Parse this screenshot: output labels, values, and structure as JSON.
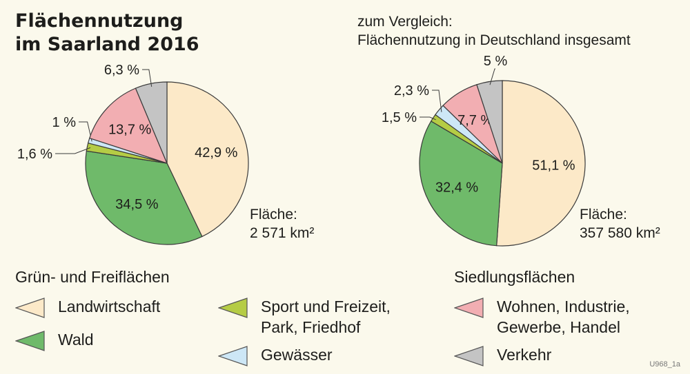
{
  "title_line1": "Flächennutzung",
  "title_line2": "im Saarland 2016",
  "compare_line1": "zum Vergleich:",
  "compare_line2": "Flächennutzung in Deutschland insgesamt",
  "colors": {
    "landwirtschaft": "#fce9c8",
    "wald": "#6fba6a",
    "sport": "#b5cc45",
    "gewaesser": "#cde7f6",
    "wohnen": "#f2aeb2",
    "verkehr": "#c4c4c4"
  },
  "chart_data": [
    {
      "type": "pie",
      "title": "Flächennutzung im Saarland 2016",
      "area_label": "Fläche:",
      "area_value": "2 571 km²",
      "slices": [
        {
          "category": "Landwirtschaft",
          "value": 42.9,
          "label": "42,9 %"
        },
        {
          "category": "Wald",
          "value": 34.5,
          "label": "34,5 %"
        },
        {
          "category": "Sport und Freizeit, Park, Friedhof",
          "value": 1.6,
          "label": "1,6 %"
        },
        {
          "category": "Gewässer",
          "value": 1.0,
          "label": "1 %"
        },
        {
          "category": "Wohnen, Industrie, Gewerbe, Handel",
          "value": 13.7,
          "label": "13,7 %"
        },
        {
          "category": "Verkehr",
          "value": 6.3,
          "label": "6,3 %"
        }
      ]
    },
    {
      "type": "pie",
      "title": "Flächennutzung in Deutschland insgesamt",
      "area_label": "Fläche:",
      "area_value": "357 580 km²",
      "slices": [
        {
          "category": "Landwirtschaft",
          "value": 51.1,
          "label": "51,1 %"
        },
        {
          "category": "Wald",
          "value": 32.4,
          "label": "32,4 %"
        },
        {
          "category": "Sport und Freizeit, Park, Friedhof",
          "value": 1.5,
          "label": "1,5 %"
        },
        {
          "category": "Gewässer",
          "value": 2.3,
          "label": "2,3 %"
        },
        {
          "category": "Wohnen, Industrie, Gewerbe, Handel",
          "value": 7.7,
          "label": "7,7 %"
        },
        {
          "category": "Verkehr",
          "value": 5.0,
          "label": "5 %"
        }
      ]
    }
  ],
  "legend": {
    "green_heading": "Grün- und Freiflächen",
    "settlement_heading": "Siedlungsflächen",
    "landwirtschaft": "Landwirtschaft",
    "wald": "Wald",
    "sport": "Sport und Freizeit,\nPark, Friedhof",
    "gewaesser": "Gewässer",
    "wohnen": "Wohnen, Industrie,\nGewerbe, Handel",
    "verkehr": "Verkehr"
  },
  "code": "U968_1a"
}
